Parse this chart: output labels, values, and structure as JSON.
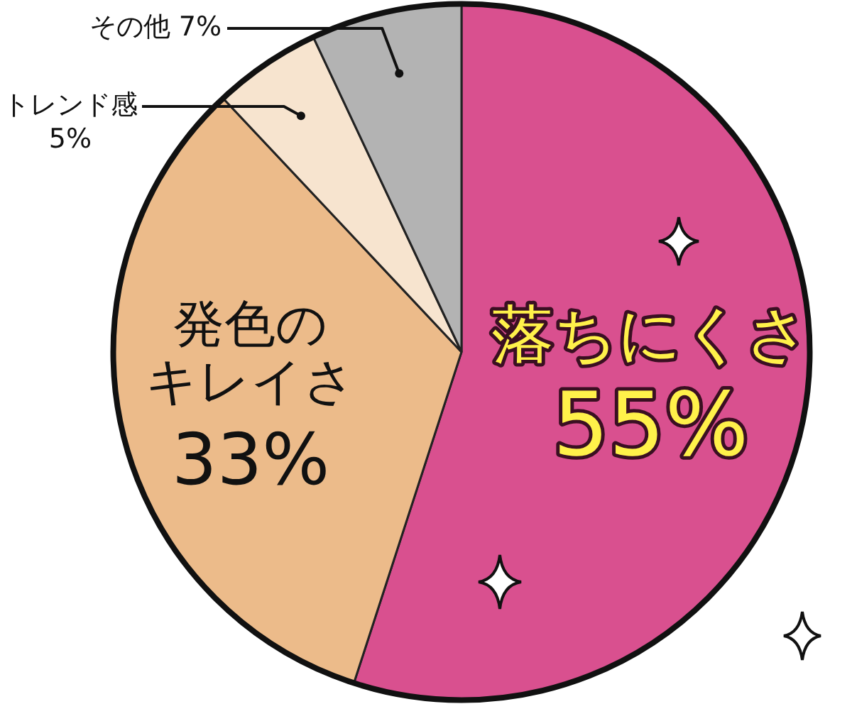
{
  "chart_data": {
    "type": "pie",
    "categories": [
      "落ちにくさ",
      "発色のキレイさ",
      "トレンド感",
      "その他"
    ],
    "values": [
      55,
      33,
      5,
      7
    ],
    "colors": [
      "#d9508f",
      "#ecbb8a",
      "#f7e4cf",
      "#b3b3b3"
    ],
    "value_labels": [
      "55%",
      "33%",
      "5%",
      "7%"
    ],
    "legend": false
  }
}
